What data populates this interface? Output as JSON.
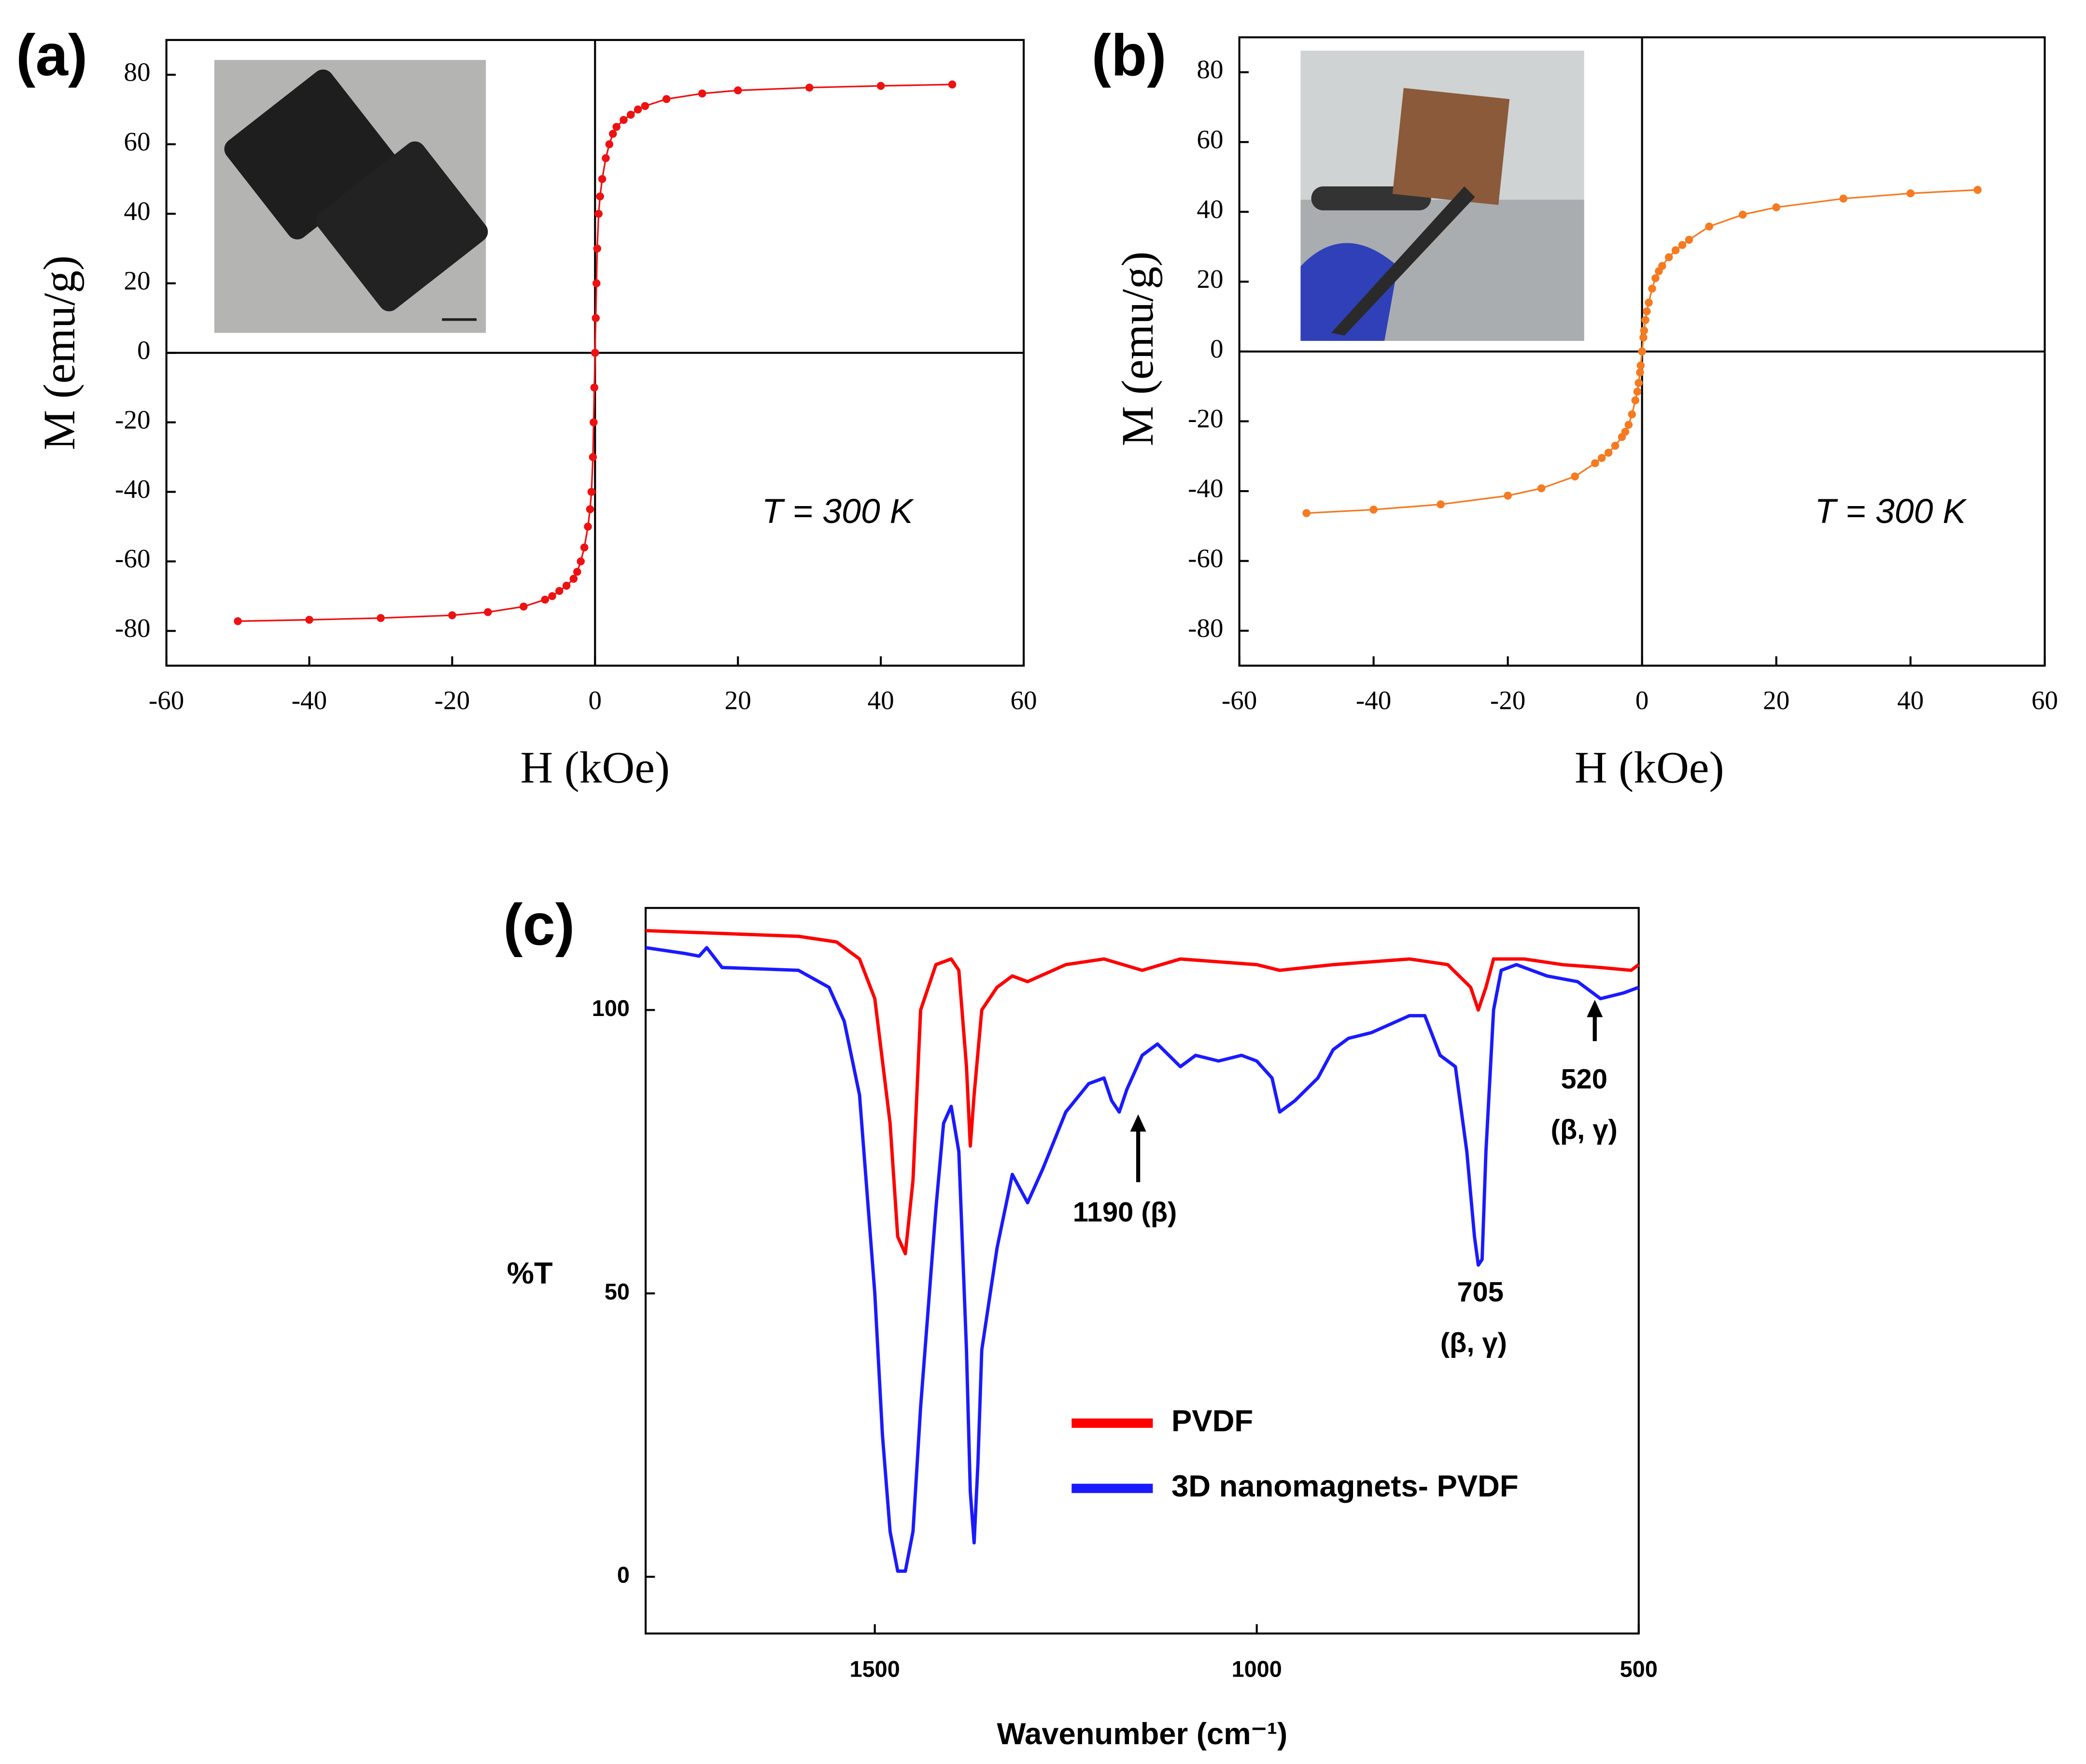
{
  "chart_data": [
    {
      "type": "line",
      "panel_label": "(a)",
      "x_label": "H (kOe)",
      "y_label": "M (emu/g)",
      "annotation": "T = 300 K",
      "xlim": [
        -60,
        60
      ],
      "xticks": [
        -60,
        -40,
        -20,
        0,
        20,
        40,
        60
      ],
      "ylim": [
        -90,
        90
      ],
      "yticks": [
        -80,
        -60,
        -40,
        -20,
        0,
        20,
        40,
        60,
        80
      ],
      "zero_lines": true,
      "markers": true,
      "series": [
        {
          "color": "#ee1111",
          "x": [
            -50,
            -40,
            -30,
            -20,
            -15,
            -10,
            -7,
            -6,
            -5,
            -4,
            -3,
            -2.5,
            -2,
            -1.5,
            -1,
            -0.7,
            -0.5,
            -0.3,
            -0.2,
            -0.1,
            0,
            0.1,
            0.2,
            0.3,
            0.5,
            0.7,
            1,
            1.5,
            2,
            2.5,
            3,
            4,
            5,
            6,
            7,
            10,
            15,
            20,
            30,
            40,
            50
          ],
          "values": [
            -77.2,
            -76.8,
            -76.3,
            -75.5,
            -74.6,
            -73,
            -71,
            -70,
            -68.5,
            -67,
            -65,
            -63,
            -60,
            -56,
            -50,
            -45,
            -40,
            -30,
            -20,
            -10,
            0,
            10,
            20,
            30,
            40,
            45,
            50,
            56,
            60,
            63,
            65,
            67,
            68.5,
            70,
            71,
            73,
            74.6,
            75.5,
            76.3,
            76.8,
            77.2
          ]
        }
      ]
    },
    {
      "type": "line",
      "panel_label": "(b)",
      "x_label": "H (kOe)",
      "y_label": "M (emu/g)",
      "annotation": "T = 300 K",
      "xlim": [
        -60,
        60
      ],
      "xticks": [
        -60,
        -40,
        -20,
        0,
        20,
        40,
        60
      ],
      "ylim": [
        -90,
        90
      ],
      "yticks": [
        -80,
        -60,
        -40,
        -20,
        0,
        20,
        40,
        60,
        80
      ],
      "zero_lines": true,
      "markers": true,
      "series": [
        {
          "color": "#f57a20",
          "x": [
            -50,
            -40,
            -30,
            -20,
            -15,
            -10,
            -7,
            -6,
            -5,
            -4,
            -3,
            -2.5,
            -2,
            -1.5,
            -1,
            -0.7,
            -0.5,
            -0.3,
            -0.2,
            0,
            0.2,
            0.3,
            0.5,
            0.7,
            1,
            1.5,
            2,
            2.5,
            3,
            4,
            5,
            6,
            7,
            10,
            15,
            20,
            30,
            40,
            50
          ],
          "values": [
            -46.3,
            -45.3,
            -43.8,
            -41.3,
            -39.2,
            -35.8,
            -32,
            -30.5,
            -29,
            -27,
            -24.5,
            -23,
            -21,
            -18,
            -14,
            -11.5,
            -9,
            -6,
            -4,
            0,
            4,
            6,
            9,
            11.5,
            14,
            18,
            21,
            23,
            24.5,
            27,
            29,
            30.5,
            32,
            35.8,
            39.2,
            41.3,
            43.8,
            45.3,
            46.3
          ]
        }
      ]
    },
    {
      "type": "line",
      "panel_label": "(c)",
      "x_label": "Wavenumber (cm⁻¹)",
      "y_label": "%T",
      "xlim": [
        1800,
        500
      ],
      "xticks": [
        1500,
        1000,
        500
      ],
      "ylim": [
        -10,
        118
      ],
      "yticks": [
        0,
        50,
        100
      ],
      "zero_lines": false,
      "markers": false,
      "legend": "lower right",
      "annotations": [
        [
          "1190 (β)"
        ],
        [
          "705",
          "(β, γ)"
        ],
        [
          "520",
          "(β, γ)"
        ]
      ],
      "series": [
        {
          "name": "PVDF",
          "color": "#ff0000",
          "x": [
            1800,
            1700,
            1600,
            1550,
            1520,
            1500,
            1480,
            1470,
            1460,
            1450,
            1440,
            1420,
            1400,
            1390,
            1380,
            1375,
            1370,
            1360,
            1340,
            1320,
            1300,
            1250,
            1200,
            1150,
            1100,
            1000,
            970,
            900,
            800,
            750,
            720,
            710,
            700,
            690,
            650,
            600,
            550,
            510,
            500
          ],
          "values": [
            114,
            113.5,
            113,
            112,
            109,
            102,
            80,
            60,
            57,
            70,
            100,
            108,
            109,
            107,
            90,
            76,
            85,
            100,
            104,
            106,
            105,
            108,
            109,
            107,
            109,
            108,
            107,
            108,
            109,
            108,
            104,
            100,
            104,
            109,
            109,
            108,
            107.5,
            107,
            108
          ]
        },
        {
          "name": "3D nanomagnets- PVDF",
          "color": "#1a1aff",
          "x": [
            1800,
            1750,
            1730,
            1720,
            1700,
            1600,
            1560,
            1540,
            1520,
            1500,
            1490,
            1480,
            1470,
            1460,
            1450,
            1440,
            1420,
            1410,
            1400,
            1390,
            1380,
            1375,
            1370,
            1365,
            1360,
            1340,
            1320,
            1300,
            1280,
            1250,
            1220,
            1200,
            1190,
            1180,
            1170,
            1150,
            1130,
            1100,
            1080,
            1050,
            1020,
            1000,
            980,
            970,
            950,
            920,
            900,
            880,
            850,
            800,
            780,
            760,
            740,
            725,
            715,
            710,
            705,
            700,
            690,
            680,
            660,
            620,
            580,
            550,
            520,
            500
          ],
          "values": [
            111,
            110,
            109.5,
            111,
            107.5,
            107,
            104,
            98,
            85,
            50,
            25,
            8,
            1,
            1,
            8,
            30,
            65,
            80,
            83,
            75,
            40,
            15,
            6,
            20,
            40,
            58,
            71,
            66,
            72,
            82,
            87,
            88,
            84,
            82,
            86,
            92,
            94,
            90,
            92,
            91,
            92,
            91,
            88,
            82,
            84,
            88,
            93,
            95,
            96,
            99,
            99,
            92,
            90,
            75,
            60,
            55,
            56,
            75,
            100,
            107,
            108,
            106,
            105,
            102,
            103,
            104
          ]
        }
      ]
    }
  ]
}
